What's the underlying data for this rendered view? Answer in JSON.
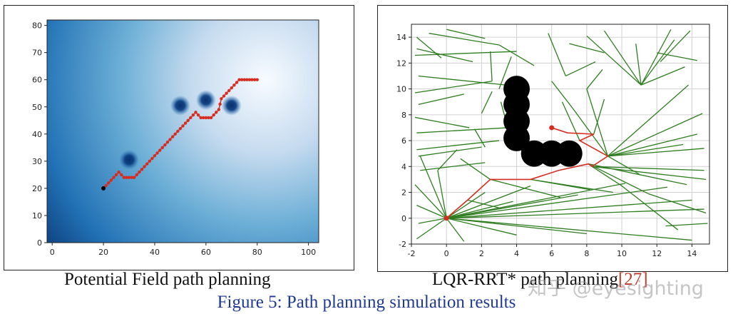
{
  "captions": {
    "left": "Potential Field path planning",
    "right_text": "LQR-RRT* path planning",
    "right_cite": "[27]",
    "figure": "Figure 5: Path planning simulation results"
  },
  "watermark": "知乎 @eyesighting",
  "chart_data": [
    {
      "type": "heatmap",
      "title": "",
      "xlabel": "",
      "ylabel": "",
      "xlim": [
        -2,
        104
      ],
      "ylim": [
        0,
        82
      ],
      "xticks": [
        0,
        20,
        40,
        60,
        80,
        100
      ],
      "yticks": [
        0,
        10,
        20,
        30,
        40,
        50,
        60,
        70,
        80
      ],
      "grid": false,
      "colormap": "Blues",
      "goal": [
        80,
        60
      ],
      "start": [
        20,
        20
      ],
      "obstacles": [
        [
          30,
          30.5
        ],
        [
          50,
          50.5
        ],
        [
          60,
          52.5
        ],
        [
          70,
          50.5
        ]
      ],
      "path_x": [
        20,
        21,
        22,
        23,
        24,
        25,
        26,
        27,
        28,
        29,
        30,
        31,
        32,
        33,
        34,
        35,
        36,
        37,
        38,
        39,
        40,
        41,
        42,
        43,
        44,
        45,
        46,
        47,
        48,
        49,
        50,
        51,
        52,
        53,
        54,
        55,
        56,
        57,
        58,
        59,
        60,
        61,
        62,
        63,
        64,
        65,
        65.5,
        66,
        67,
        68,
        69,
        70,
        71,
        72,
        73,
        74,
        75,
        76,
        77,
        78,
        79,
        80
      ],
      "path_y": [
        20,
        21,
        22,
        23,
        24,
        25,
        26,
        25,
        24,
        24,
        24,
        24,
        24,
        25,
        26,
        27,
        28,
        29,
        30,
        31,
        32,
        33,
        34,
        35,
        36,
        37,
        38,
        39,
        40,
        41,
        42,
        43,
        44,
        45,
        46,
        47,
        48,
        47,
        46,
        46,
        46,
        46,
        46,
        47,
        48,
        49,
        51,
        53,
        54,
        55,
        56,
        57,
        58,
        59,
        60,
        60,
        60,
        60,
        60,
        60,
        60,
        60
      ],
      "path_color": "#d62d20",
      "start_color": "#000000"
    },
    {
      "type": "line",
      "title": "",
      "xlabel": "",
      "ylabel": "",
      "xlim": [
        -2,
        15
      ],
      "ylim": [
        -2,
        15
      ],
      "xticks": [
        -2,
        0,
        2,
        4,
        6,
        8,
        10,
        12,
        14
      ],
      "yticks": [
        -2,
        0,
        2,
        4,
        6,
        8,
        10,
        12,
        14
      ],
      "grid": true,
      "tree_color": "#2e7d1f",
      "path_color": "#d62d20",
      "obstacle_color": "#000000",
      "start": [
        0,
        0
      ],
      "goal": [
        6,
        7
      ],
      "obstacles": [
        [
          4,
          10
        ],
        [
          4,
          8.8
        ],
        [
          4,
          7.5
        ],
        [
          4,
          6.2
        ],
        [
          5,
          5
        ],
        [
          6,
          5
        ],
        [
          7,
          5
        ]
      ],
      "obstacle_radius": 0.75,
      "path_x": [
        0,
        1.2,
        2.5,
        4.8,
        6.4,
        8.1,
        8.3,
        9.2,
        7.6,
        8.4,
        6.9,
        6.0
      ],
      "path_y": [
        0,
        1.4,
        3.0,
        3.0,
        3.7,
        4.2,
        4.0,
        4.8,
        6.0,
        6.5,
        6.6,
        7.0
      ],
      "tree_edges": [
        [
          0,
          0,
          -1.5,
          4.8
        ],
        [
          0,
          0,
          -1.8,
          2.6
        ],
        [
          0,
          0,
          -1.7,
          1.0
        ],
        [
          0,
          0,
          -1.6,
          -0.4
        ],
        [
          0,
          0,
          -1.7,
          -1.6
        ],
        [
          0,
          0,
          1.0,
          -1.8
        ],
        [
          0,
          0,
          4.0,
          -1.3
        ],
        [
          0,
          0,
          8.0,
          -1.2
        ],
        [
          0,
          0,
          14.0,
          -1.7
        ],
        [
          0,
          0,
          14.7,
          0.7
        ],
        [
          0,
          0,
          14.0,
          1.4
        ],
        [
          0,
          0,
          12.6,
          2.4
        ],
        [
          0,
          0,
          10.2,
          2.7
        ],
        [
          0,
          0,
          7.5,
          1.8
        ],
        [
          0,
          0,
          4.8,
          2.5
        ],
        [
          0,
          0,
          3.8,
          1.3
        ],
        [
          0,
          0,
          2.2,
          2.0
        ],
        [
          0,
          0,
          -0.5,
          3.7
        ],
        [
          -1.6,
          4.8,
          2.0,
          5.5
        ],
        [
          -1.5,
          3.7,
          2.2,
          4.3
        ],
        [
          -1.7,
          6.6,
          3.5,
          7.0
        ],
        [
          -1.7,
          5.3,
          3.0,
          6.0
        ],
        [
          -1.8,
          9.7,
          2.6,
          10.6
        ],
        [
          -1.6,
          11.0,
          3.4,
          10.3
        ],
        [
          -1.8,
          12.6,
          4.0,
          12.9
        ],
        [
          -1.0,
          14.3,
          3.0,
          13.4
        ],
        [
          -1.7,
          14.0,
          -0.3,
          12.4
        ],
        [
          -1.7,
          13.1,
          1.5,
          12.1
        ],
        [
          0,
          14.6,
          2.2,
          13.9
        ],
        [
          3.0,
          13.4,
          5.0,
          11.8
        ],
        [
          2.6,
          10.6,
          2.5,
          12.9
        ],
        [
          -1.6,
          8.8,
          1.0,
          9.6
        ],
        [
          -1.8,
          7.8,
          1.3,
          7.0
        ],
        [
          3.0,
          10.0,
          3.7,
          12.5
        ],
        [
          5.8,
          14.3,
          6.8,
          11.0
        ],
        [
          6.8,
          11.0,
          8.5,
          12.1
        ],
        [
          7.0,
          13.5,
          9.0,
          12.8
        ],
        [
          8.0,
          14.1,
          11.1,
          10.3
        ],
        [
          9.0,
          14.5,
          11.1,
          10.3
        ],
        [
          11.1,
          10.3,
          13.0,
          13.8
        ],
        [
          11.1,
          10.3,
          13.6,
          11.7
        ],
        [
          11.1,
          10.3,
          12.8,
          14.6
        ],
        [
          10.8,
          13.5,
          11.1,
          10.3
        ],
        [
          12.0,
          12.8,
          14.3,
          12.2
        ],
        [
          12.2,
          12.1,
          13.9,
          14.5
        ],
        [
          9.2,
          4.8,
          13.8,
          10.3
        ],
        [
          9.2,
          4.8,
          14.6,
          8.1
        ],
        [
          9.2,
          4.8,
          14.3,
          6.5
        ],
        [
          9.2,
          4.8,
          13.5,
          5.7
        ],
        [
          9.2,
          4.8,
          14.7,
          5.4
        ],
        [
          9.2,
          4.8,
          11.0,
          3.4
        ],
        [
          9.2,
          4.8,
          7.2,
          8.5
        ],
        [
          9.2,
          4.8,
          8.0,
          10.0
        ],
        [
          7.2,
          8.5,
          6.0,
          10.6
        ],
        [
          8.0,
          10.0,
          8.9,
          11.5
        ],
        [
          8.3,
          4.0,
          14.7,
          3.7
        ],
        [
          8.3,
          4.0,
          14.8,
          3.0
        ],
        [
          8.1,
          4.2,
          13.7,
          2.6
        ],
        [
          8.1,
          4.2,
          11.5,
          1.9
        ],
        [
          8.3,
          4.0,
          10.0,
          2.5
        ],
        [
          4.8,
          3.0,
          8.2,
          2.2
        ],
        [
          4.8,
          3.0,
          9.5,
          2.0
        ],
        [
          2.5,
          3.0,
          6.5,
          1.6
        ],
        [
          2.5,
          3.0,
          0.8,
          4.6
        ],
        [
          1.2,
          1.4,
          3.0,
          0.8
        ],
        [
          10.0,
          2.5,
          13.2,
          -0.9
        ],
        [
          11.5,
          1.9,
          14.8,
          0.4
        ],
        [
          12.5,
          -0.6,
          14.9,
          -0.4
        ],
        [
          7.6,
          6.0,
          6.6,
          9.0
        ],
        [
          8.4,
          6.5,
          9.0,
          9.2
        ],
        [
          2.2,
          5.5,
          1.6,
          6.9
        ],
        [
          3.5,
          7.0,
          3.1,
          9.0
        ],
        [
          2.0,
          8.1,
          2.6,
          9.8
        ],
        [
          -0.5,
          3.7,
          0.6,
          5.3
        ]
      ]
    }
  ]
}
